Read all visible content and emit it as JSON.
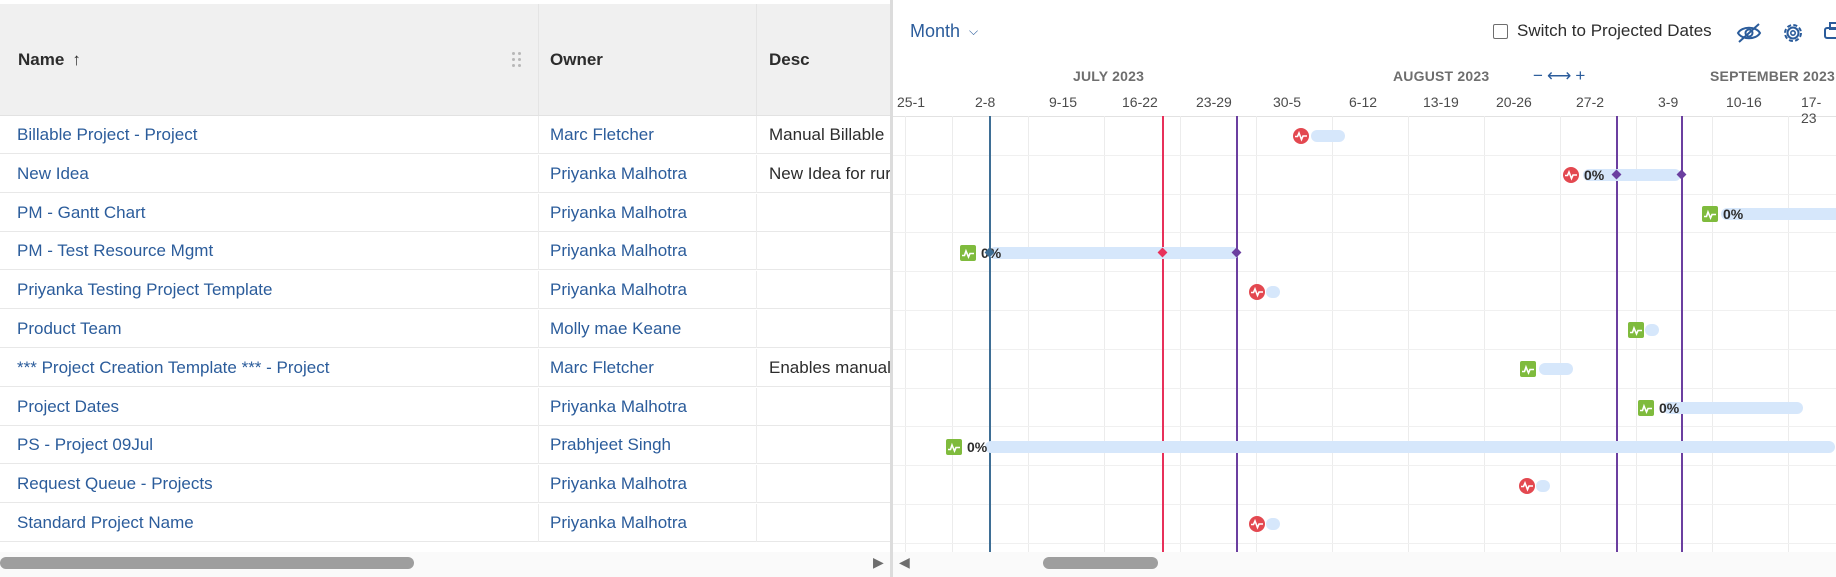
{
  "table": {
    "headers": {
      "name": "Name",
      "owner": "Owner",
      "desc": "Desc"
    },
    "rows": [
      {
        "name": "Billable Project - Project",
        "owner": "Marc Fletcher",
        "desc": "Manual Billable"
      },
      {
        "name": "New Idea",
        "owner": "Priyanka Malhotra",
        "desc": "New Idea for rur"
      },
      {
        "name": "PM - Gantt Chart",
        "owner": "Priyanka Malhotra",
        "desc": ""
      },
      {
        "name": "PM - Test Resource Mgmt",
        "owner": "Priyanka Malhotra",
        "desc": ""
      },
      {
        "name": "Priyanka Testing Project Template",
        "owner": "Priyanka Malhotra",
        "desc": ""
      },
      {
        "name": "Product Team",
        "owner": "Molly mae Keane",
        "desc": ""
      },
      {
        "name": "*** Project Creation Template *** - Project",
        "owner": "Marc Fletcher",
        "desc": "Enables manual"
      },
      {
        "name": "Project Dates",
        "owner": "Priyanka Malhotra",
        "desc": ""
      },
      {
        "name": "PS - Project 09Jul",
        "owner": "Prabhjeet Singh",
        "desc": ""
      },
      {
        "name": "Request Queue - Projects",
        "owner": "Priyanka Malhotra",
        "desc": ""
      },
      {
        "name": "Standard Project Name",
        "owner": "Priyanka Malhotra",
        "desc": ""
      }
    ]
  },
  "gantt": {
    "view_label": "Month",
    "projected_label": "Switch to Projected Dates",
    "projected_checked": false,
    "months": [
      "JULY 2023",
      "AUGUST 2023",
      "SEPTEMBER 2023"
    ],
    "weeks": [
      "25-1",
      "2-8",
      "9-15",
      "16-22",
      "23-29",
      "30-5",
      "6-12",
      "13-19",
      "20-26",
      "27-2",
      "3-9",
      "10-16",
      "17-23"
    ],
    "zoom": {
      "minus": "−",
      "plus": "+"
    },
    "bars": [
      {
        "status": "red",
        "pct": ""
      },
      {
        "status": "red",
        "pct": "0%"
      },
      {
        "status": "green",
        "pct": "0%"
      },
      {
        "status": "green",
        "pct": "0%"
      },
      {
        "status": "red",
        "pct": ""
      },
      {
        "status": "green",
        "pct": ""
      },
      {
        "status": "green",
        "pct": ""
      },
      {
        "status": "green",
        "pct": "0%"
      },
      {
        "status": "green",
        "pct": "0%"
      },
      {
        "status": "red",
        "pct": ""
      },
      {
        "status": "red",
        "pct": ""
      }
    ]
  },
  "colors": {
    "link": "#2b5c9b",
    "today_line": "#3e6e95",
    "red_marker": "#e8305a",
    "purple_marker": "#6b3fa0",
    "bar": "#d6e7fb",
    "status_red": "#e34850",
    "status_green": "#7fbb3d"
  }
}
